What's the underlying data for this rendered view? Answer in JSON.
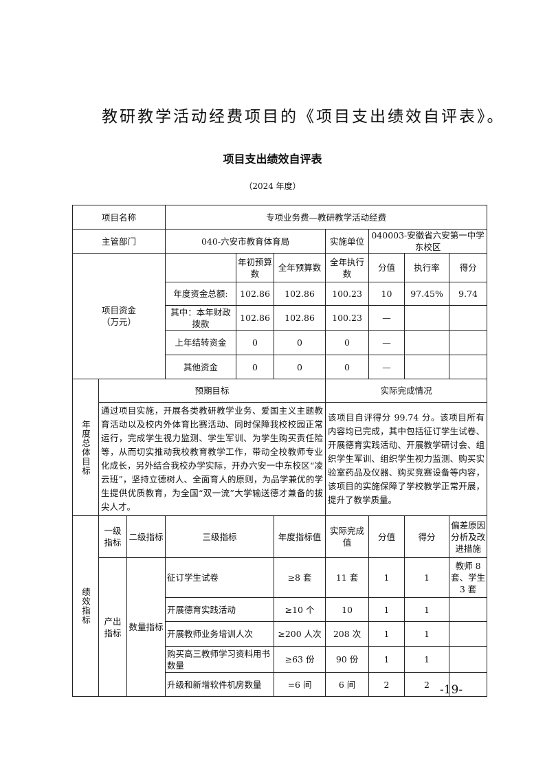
{
  "intro": "教研教学活动经费项目的《项目支出绩效自评表》。",
  "title": "项目支出绩效自评表",
  "year": "（2024 年度）",
  "project": {
    "name_label": "项目名称",
    "name": "专项业务费—教研教学活动经费",
    "dept_label": "主管部门",
    "dept": "040-六安市教育体育局",
    "unit_label": "实施单位",
    "unit": "040003-安徽省六安第一中学东校区"
  },
  "funds": {
    "label": "项目资金（万元）",
    "headers": [
      "",
      "年初预算数",
      "全年预算数",
      "全年执行数",
      "分值",
      "执行率",
      "得分"
    ],
    "rows": [
      [
        "年度资金总额:",
        "102.86",
        "102.86",
        "100.23",
        "10",
        "97.45%",
        "9.74"
      ],
      [
        "其中：本年财政拨款",
        "102.86",
        "102.86",
        "100.23",
        "—",
        "",
        ""
      ],
      [
        "上年结转资金",
        "0",
        "0",
        "0",
        "—",
        "",
        ""
      ],
      [
        "其他资金",
        "0",
        "0",
        "0",
        "—",
        "",
        ""
      ]
    ]
  },
  "goals": {
    "label": "年度总体目标",
    "expected_label": "预期目标",
    "actual_label": "实际完成情况",
    "expected": "通过项目实施，开展各类教研教学业务、爱国主义主题教育活动以及校内外体育比赛活动、同时保障我校校园正常运行，完成学生视力监测、学生军训、为学生购买责任险等，从而切实推动我校教育教学工作，带动全校教师专业化成长，另外结合我校办学实际，开办六安一中东校区“凌云班”，坚持立德树人、全面育人的原则，为品学兼优的学生提供优质教育，为全国“双一流”大学输送德才兼备的拔尖人才。",
    "actual": "该项目自评得分 99.74 分。该项目所有内容均已完成，其中包括征订学生试卷、开展德育实践活动、开展教学研讨会、组织学生军训、组织学生视力监测、购买实验室药品及仪器、购买竞赛设备等内容，该项目的实施保障了学校教学正常开展，提升了教学质量。"
  },
  "indicators": {
    "label": "绩效指标",
    "headers": [
      "一级指标",
      "二级指标",
      "三级指标",
      "年度指标值",
      "实际完成值",
      "分值",
      "得分",
      "偏差原因分析及改进措施"
    ],
    "level1": "产出指标",
    "level2": "数量指标",
    "rows": [
      [
        "征订学生试卷",
        "≥8 套",
        "11 套",
        "1",
        "1",
        "教师 8 套、学生 3 套"
      ],
      [
        "开展德育实践活动",
        "≥10 个",
        "10",
        "1",
        "1",
        ""
      ],
      [
        "开展教师业务培训人次",
        "≥200 人次",
        "208 次",
        "1",
        "1",
        ""
      ],
      [
        "购买高三教师学习资料用书数量",
        "≥63 份",
        "90 份",
        "1",
        "1",
        ""
      ],
      [
        "升级和新增软件机房数量",
        "=6 间",
        "6 间",
        "2",
        "2",
        ""
      ]
    ]
  },
  "page_number": "-19-"
}
